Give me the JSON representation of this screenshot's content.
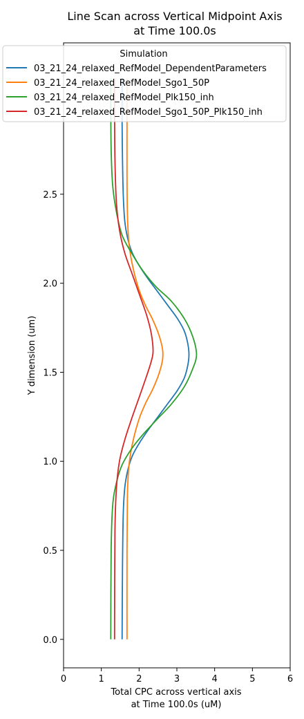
{
  "chart_data": {
    "type": "line",
    "title_lines": [
      "Line Scan across Vertical Midpoint Axis",
      "at Time 100.0s"
    ],
    "xlabel_lines": [
      "Total CPC across vertical axis",
      "at Time 100.0s (uM)"
    ],
    "ylabel": "Y dimension (um)",
    "xlim": [
      0,
      6
    ],
    "ylim": [
      -0.16,
      3.35
    ],
    "xticks": [
      0,
      1,
      2,
      3,
      4,
      5,
      6
    ],
    "xtick_labels": [
      "0",
      "1",
      "2",
      "3",
      "4",
      "5",
      "6"
    ],
    "yticks": [
      0.0,
      0.5,
      1.0,
      1.5,
      2.0,
      2.5
    ],
    "ytick_labels": [
      "0.0",
      "0.5",
      "1.0",
      "1.5",
      "2.0",
      "2.5"
    ],
    "grid": false,
    "legend": {
      "title": "Simulation",
      "placement": "top-left"
    },
    "series": [
      {
        "name": "03_21_24_relaxed_RefModel_DependentParameters",
        "color": "#1f77b4",
        "x": [
          1.55,
          1.56,
          1.58,
          1.62,
          1.7,
          1.82,
          2.0,
          2.22,
          2.5,
          2.78,
          3.02,
          3.2,
          3.29,
          3.32,
          3.29,
          3.2,
          3.02,
          2.78,
          2.5,
          2.22,
          2.0,
          1.82,
          1.7,
          1.62,
          1.58,
          1.56,
          1.55,
          1.55,
          1.55
        ],
        "y": [
          0.0,
          0.4,
          0.7,
          0.85,
          0.95,
          1.03,
          1.1,
          1.17,
          1.25,
          1.33,
          1.4,
          1.47,
          1.54,
          1.6,
          1.66,
          1.73,
          1.8,
          1.87,
          1.95,
          2.03,
          2.1,
          2.17,
          2.25,
          2.35,
          2.5,
          2.7,
          2.9,
          3.05,
          3.15
        ]
      },
      {
        "name": "03_21_24_relaxed_RefModel_Sgo1_50P",
        "color": "#ff7f0e",
        "x": [
          1.68,
          1.68,
          1.69,
          1.72,
          1.78,
          1.88,
          2.02,
          2.18,
          2.35,
          2.49,
          2.58,
          2.62,
          2.63,
          2.62,
          2.58,
          2.49,
          2.35,
          2.18,
          2.02,
          1.88,
          1.78,
          1.72,
          1.69,
          1.68,
          1.68,
          1.68
        ],
        "y": [
          0.0,
          0.5,
          0.8,
          0.95,
          1.05,
          1.15,
          1.25,
          1.33,
          1.4,
          1.47,
          1.53,
          1.57,
          1.6,
          1.63,
          1.67,
          1.73,
          1.8,
          1.87,
          1.95,
          2.05,
          2.15,
          2.25,
          2.4,
          2.6,
          2.9,
          3.15
        ]
      },
      {
        "name": "03_21_24_relaxed_RefModel_Plk150_inh",
        "color": "#2ca02c",
        "x": [
          1.25,
          1.26,
          1.3,
          1.4,
          1.55,
          1.8,
          2.1,
          2.45,
          2.85,
          3.2,
          3.42,
          3.52,
          3.42,
          3.2,
          2.85,
          2.45,
          2.1,
          1.8,
          1.55,
          1.4,
          1.3,
          1.26,
          1.25,
          1.25
        ],
        "y": [
          0.0,
          0.5,
          0.75,
          0.88,
          0.98,
          1.07,
          1.15,
          1.23,
          1.32,
          1.42,
          1.52,
          1.6,
          1.7,
          1.8,
          1.9,
          1.98,
          2.07,
          2.17,
          2.27,
          2.4,
          2.55,
          2.75,
          3.0,
          3.15
        ]
      },
      {
        "name": "03_21_24_relaxed_RefModel_Sgo1_50P_Plk150_inh",
        "color": "#d62728",
        "x": [
          1.35,
          1.36,
          1.4,
          1.48,
          1.62,
          1.82,
          2.02,
          2.2,
          2.32,
          2.37,
          2.32,
          2.2,
          2.02,
          1.82,
          1.62,
          1.48,
          1.4,
          1.36,
          1.35,
          1.35
        ],
        "y": [
          0.0,
          0.6,
          0.85,
          1.0,
          1.12,
          1.25,
          1.37,
          1.48,
          1.56,
          1.62,
          1.72,
          1.82,
          1.93,
          2.05,
          2.17,
          2.3,
          2.45,
          2.7,
          3.0,
          3.15
        ]
      }
    ]
  }
}
